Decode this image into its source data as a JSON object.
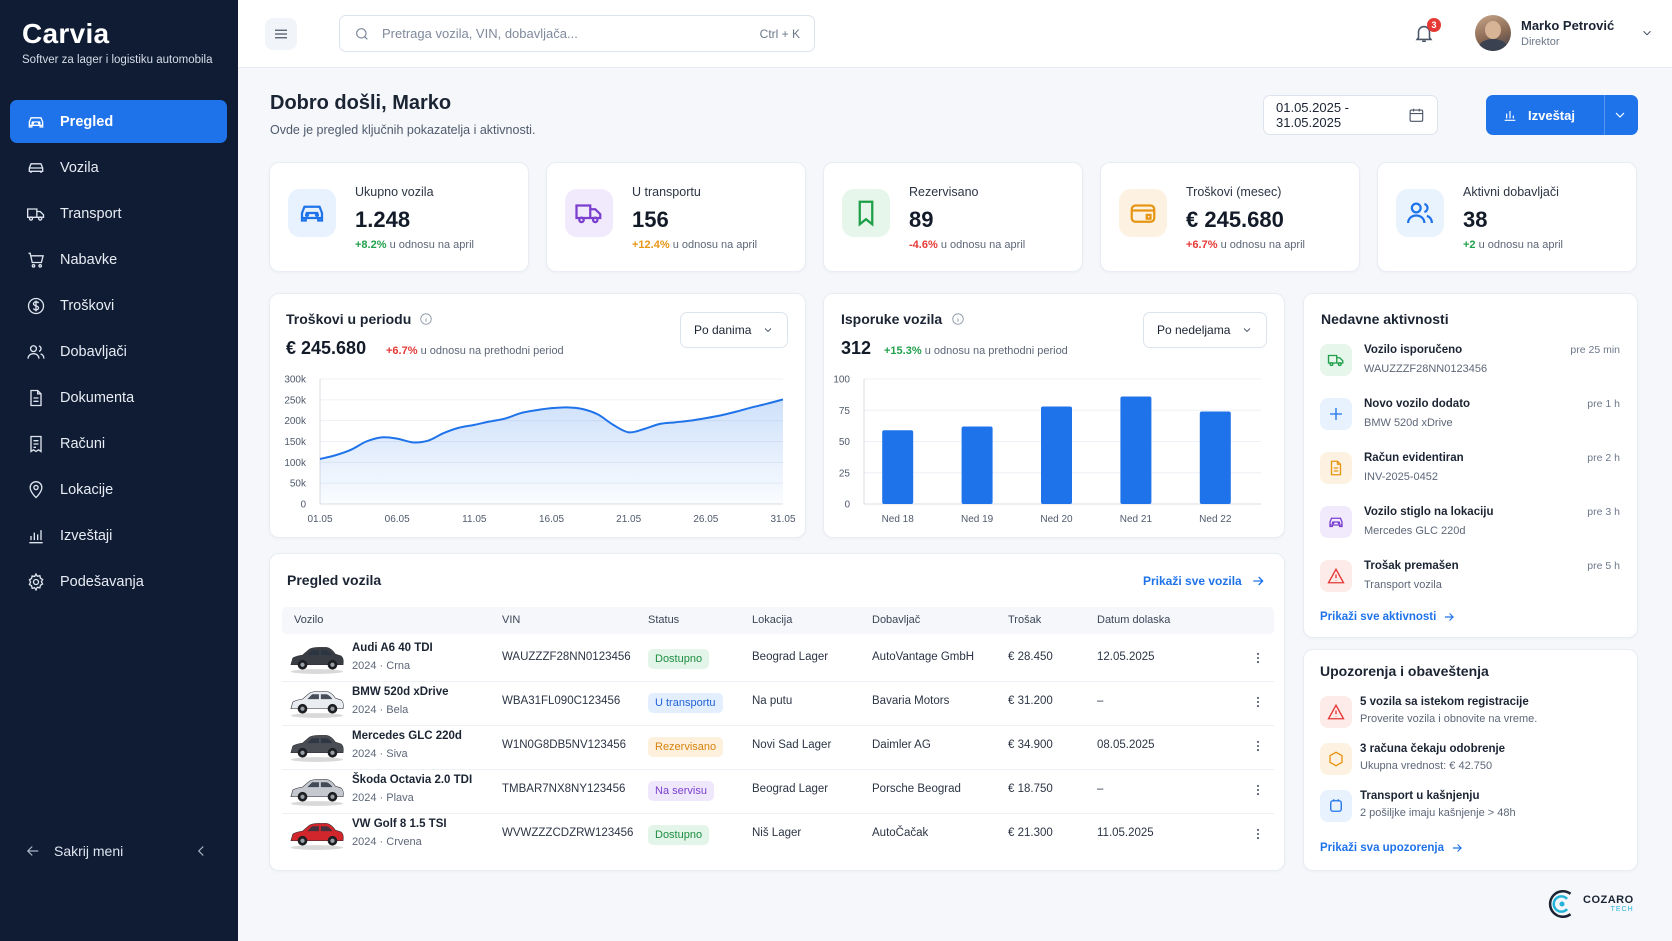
{
  "brand": {
    "name": "Carvia",
    "tagline": "Softver za lager i logistiku automobila"
  },
  "sidebar": {
    "items": [
      {
        "label": "Pregled",
        "icon": "car-icon",
        "active": true
      },
      {
        "label": "Vozila",
        "icon": "car-outline-icon"
      },
      {
        "label": "Transport",
        "icon": "truck-icon"
      },
      {
        "label": "Nabavke",
        "icon": "cart-icon"
      },
      {
        "label": "Troškovi",
        "icon": "dollar-icon"
      },
      {
        "label": "Dobavljači",
        "icon": "users-icon"
      },
      {
        "label": "Dokumenta",
        "icon": "document-icon"
      },
      {
        "label": "Računi",
        "icon": "receipt-icon"
      },
      {
        "label": "Lokacije",
        "icon": "map-pin-icon"
      },
      {
        "label": "Izveštaji",
        "icon": "bar-chart-icon"
      },
      {
        "label": "Podešavanja",
        "icon": "gear-icon"
      }
    ],
    "collapse_label": "Sakrij meni"
  },
  "topbar": {
    "search_placeholder": "Pretraga vozila, VIN, dobavljača...",
    "search_shortcut": "Ctrl + K",
    "notifications_count": "3",
    "user_name": "Marko Petrović",
    "user_role": "Direktor"
  },
  "header": {
    "title": "Dobro došli, Marko",
    "subtitle": "Ovde je pregled ključnih pokazatelja i aktivnosti.",
    "date_range": "01.05.2025 - 31.05.2025",
    "report_label": "Izveštaj"
  },
  "kpis": [
    {
      "label": "Ukupno vozila",
      "value": "1.248",
      "delta": "+8.2%",
      "delta_text": "u odnosu na april",
      "tone": "pos",
      "color": "#1f73ea",
      "bg": "#e8f1fe"
    },
    {
      "label": "U transportu",
      "value": "156",
      "delta": "+12.4%",
      "delta_text": "u odnosu na april",
      "tone": "warn",
      "color": "#7a3fcf",
      "bg": "#f1eafc"
    },
    {
      "label": "Rezervisano",
      "value": "89",
      "delta": "-4.6%",
      "delta_text": "u odnosu na april",
      "tone": "neg",
      "color": "#1d9e47",
      "bg": "#e6f6eb"
    },
    {
      "label": "Troškovi (mesec)",
      "value": "€ 245.680",
      "delta": "+6.7%",
      "delta_text": "u odnosu na april",
      "tone": "neg",
      "color": "#e79515",
      "bg": "#fdf2e1"
    },
    {
      "label": "Aktivni dobavljači",
      "value": "38",
      "delta": "+2",
      "delta_text": "u odnosu na april",
      "tone": "pos",
      "color": "#1f73ea",
      "bg": "#e8f3fe"
    }
  ],
  "costs_card": {
    "title": "Troškovi u periodu",
    "select": "Po danima",
    "value": "€ 245.680",
    "delta": "+6.7%",
    "delta_text": "u odnosu na prethodni period"
  },
  "deliveries_card": {
    "title": "Isporuke vozila",
    "select": "Po nedeljama",
    "value": "312",
    "delta": "+15.3%",
    "delta_text": "u odnosu na prethodni period"
  },
  "chart_data": [
    {
      "type": "area",
      "title": "Troškovi u periodu",
      "x_ticks": [
        "01.05",
        "06.05",
        "11.05",
        "16.05",
        "21.05",
        "26.05",
        "31.05"
      ],
      "y_ticks": [
        "0",
        "50k",
        "100k",
        "150k",
        "200k",
        "250k",
        "300k"
      ],
      "ylim": [
        0,
        300000
      ],
      "xlim": [
        1,
        31
      ],
      "x": [
        1,
        2,
        3,
        4,
        5,
        6,
        7,
        8,
        9,
        10,
        11,
        12,
        13,
        14,
        15,
        16,
        17,
        18,
        19,
        20,
        21,
        22,
        23,
        24,
        25,
        26,
        27,
        28,
        29,
        30,
        31
      ],
      "values": [
        108000,
        117000,
        130000,
        150000,
        160000,
        157000,
        148000,
        152000,
        170000,
        183000,
        190000,
        198000,
        205000,
        218000,
        225000,
        230000,
        232000,
        228000,
        215000,
        190000,
        172000,
        180000,
        192000,
        196000,
        200000,
        206000,
        213000,
        222000,
        232000,
        241000,
        251000
      ],
      "color": "#1f73ea"
    },
    {
      "type": "bar",
      "title": "Isporuke vozila",
      "categories": [
        "Ned 18",
        "Ned 19",
        "Ned 20",
        "Ned 21",
        "Ned 22"
      ],
      "values": [
        59,
        62,
        78,
        86,
        74
      ],
      "y_ticks": [
        "0",
        "25",
        "50",
        "75",
        "100"
      ],
      "ylim": [
        0,
        100
      ],
      "color": "#1f73ea"
    }
  ],
  "activities": {
    "title": "Nedavne aktivnosti",
    "items": [
      {
        "title": "Vozilo isporučeno",
        "sub": "WAUZZZF28NN0123456",
        "time": "pre 25 min",
        "icon": "truck-icon",
        "color": "#1d9e47",
        "bg": "#e6f6eb"
      },
      {
        "title": "Novo vozilo dodato",
        "sub": "BMW 520d xDrive",
        "time": "pre 1 h",
        "icon": "plus-icon",
        "color": "#1f73ea",
        "bg": "#e8f1fe"
      },
      {
        "title": "Račun evidentiran",
        "sub": "INV-2025-0452",
        "time": "pre 2 h",
        "icon": "document-icon",
        "color": "#e79515",
        "bg": "#fdf2e1"
      },
      {
        "title": "Vozilo stiglo na lokaciju",
        "sub": "Mercedes GLC 220d",
        "time": "pre 3 h",
        "icon": "car-icon",
        "color": "#7a3fcf",
        "bg": "#f1eafc"
      },
      {
        "title": "Trošak premašen",
        "sub": "Transport vozila",
        "time": "pre 5 h",
        "icon": "warning-icon",
        "color": "#e53935",
        "bg": "#fdebea"
      }
    ],
    "link": "Prikaži sve aktivnosti"
  },
  "vehicles": {
    "title": "Pregled vozila",
    "link": "Prikaži sve vozila",
    "columns": [
      "Vozilo",
      "VIN",
      "Status",
      "Lokacija",
      "Dobavljač",
      "Trošak",
      "Datum dolaska"
    ],
    "rows": [
      {
        "name": "Audi A6 40 TDI",
        "meta": "2024 · Crna",
        "vin": "WAUZZZF28NN0123456",
        "status": "Dostupno",
        "status_tone": "green",
        "location": "Beograd Lager",
        "supplier": "AutoVantage GmbH",
        "cost": "€ 28.450",
        "arrival": "12.05.2025",
        "car_color": "#3a3d44"
      },
      {
        "name": "BMW 520d xDrive",
        "meta": "2024 · Bela",
        "vin": "WBA31FL090C123456",
        "status": "U transportu",
        "status_tone": "blue",
        "location": "Na putu",
        "supplier": "Bavaria Motors",
        "cost": "€ 31.200",
        "arrival": "–",
        "car_color": "#e9ecf0"
      },
      {
        "name": "Mercedes GLC 220d",
        "meta": "2024 · Siva",
        "vin": "W1N0G8DB5NV123456",
        "status": "Rezervisano",
        "status_tone": "orange",
        "location": "Novi Sad Lager",
        "supplier": "Daimler AG",
        "cost": "€ 34.900",
        "arrival": "08.05.2025",
        "car_color": "#4a4d53"
      },
      {
        "name": "Škoda Octavia 2.0 TDI",
        "meta": "2024 · Plava",
        "vin": "TMBAR7NX8NY123456",
        "status": "Na servisu",
        "status_tone": "purple",
        "location": "Beograd Lager",
        "supplier": "Porsche Beograd",
        "cost": "€ 18.750",
        "arrival": "–",
        "car_color": "#c5c9cf"
      },
      {
        "name": "VW Golf 8 1.5 TSI",
        "meta": "2024 · Crvena",
        "vin": "WVWZZZCDZRW123456",
        "status": "Dostupno",
        "status_tone": "green",
        "location": "Niš Lager",
        "supplier": "AutoČačak",
        "cost": "€ 21.300",
        "arrival": "11.05.2025",
        "car_color": "#d0262c"
      }
    ]
  },
  "alerts": {
    "title": "Upozorenja i obaveštenja",
    "items": [
      {
        "title": "5 vozila sa istekom registracije",
        "sub": "Proverite vozila i obnovite na vreme.",
        "icon": "warning-icon",
        "color": "#e53935",
        "bg": "#fdebea"
      },
      {
        "title": "3 računa čekaju odobrenje",
        "sub": "Ukupna vrednost: € 42.750",
        "icon": "hexagon-icon",
        "color": "#e79515",
        "bg": "#fdf2e1"
      },
      {
        "title": "Transport u kašnjenju",
        "sub": "2 pošiljke imaju kašnjenje > 48h",
        "icon": "square-icon",
        "color": "#1f73ea",
        "bg": "#e8f1fe"
      }
    ],
    "link": "Prikaži sva upozorenja"
  },
  "watermark": {
    "name": "COZARO",
    "sub": "TECH"
  }
}
